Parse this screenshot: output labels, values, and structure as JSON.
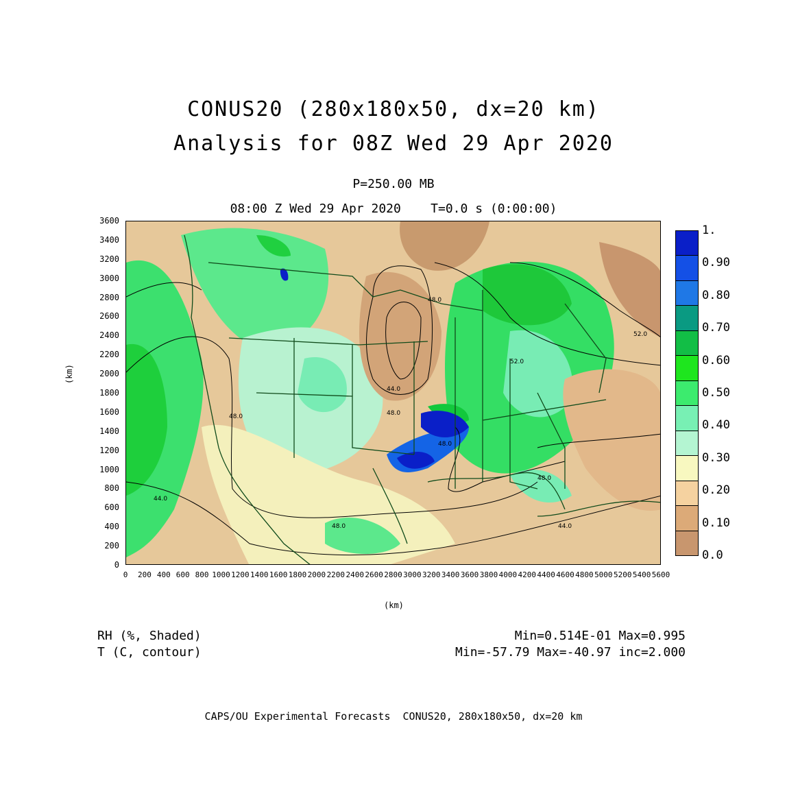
{
  "title": {
    "line1": "CONUS20 (280x180x50, dx=20 km)",
    "line2": "Analysis for 08Z Wed 29 Apr 2020",
    "level": "P=250.00 MB",
    "time": "08:00 Z Wed 29 Apr 2020    T=0.0 s (0:00:00)"
  },
  "axes": {
    "y_ticks": [
      "0",
      "200",
      "400",
      "600",
      "800",
      "1000",
      "1200",
      "1400",
      "1600",
      "1800",
      "2000",
      "2200",
      "2400",
      "2600",
      "2800",
      "3000",
      "3200",
      "3400",
      "3600"
    ],
    "x_ticks": [
      "0",
      "200",
      "400",
      "600",
      "800",
      "1000",
      "1200",
      "1400",
      "1600",
      "1800",
      "2000",
      "2200",
      "2400",
      "2600",
      "2800",
      "3000",
      "3200",
      "3400",
      "3600",
      "3800",
      "4000",
      "4200",
      "4400",
      "4600",
      "4800",
      "5000",
      "5200",
      "5400",
      "5600"
    ],
    "x_unit": "(km)",
    "y_unit": "(km)"
  },
  "colorbar": {
    "labels": [
      "1.",
      "0.90",
      "0.80",
      "0.70",
      "0.60",
      "0.50",
      "0.40",
      "0.30",
      "0.20",
      "0.10",
      "0.0"
    ],
    "colors": [
      "#0a1fc8",
      "#1450e6",
      "#1f78e6",
      "#0a9a82",
      "#12be46",
      "#1ee61e",
      "#3ceb6e",
      "#78f0b4",
      "#b4f5d2",
      "#f8f8c0",
      "#f5d2a0",
      "#dcaa78",
      "#c8966e"
    ]
  },
  "contour_labels": [
    "48.0",
    "44.0",
    "48.0",
    "48.0",
    "44.0",
    "48.0",
    "52.0",
    "52.0",
    "48.0",
    "48.0",
    "44.0"
  ],
  "legend": {
    "shaded": "RH (%, Shaded)",
    "contour": "T (C, contour)",
    "shaded_stats": "Min=0.514E-01 Max=0.995",
    "contour_stats": "Min=-57.79 Max=-40.97 inc=2.000"
  },
  "footer": "CAPS/OU Experimental Forecasts  CONUS20, 280x180x50, dx=20 km"
}
